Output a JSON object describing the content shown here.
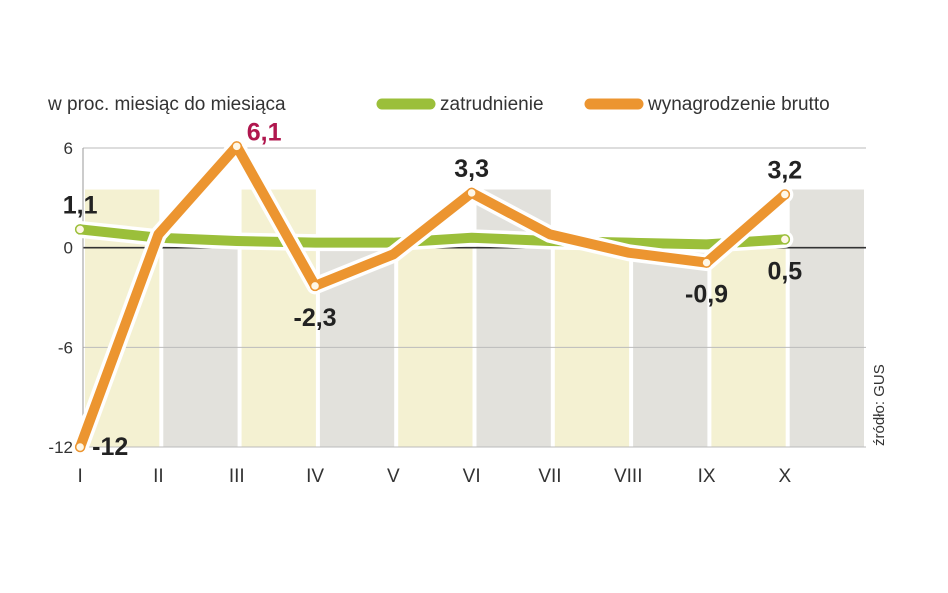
{
  "chart_data": {
    "type": "line",
    "ylabel": "w proc. miesiąc do miesiąca",
    "categories": [
      "I",
      "II",
      "III",
      "IV",
      "V",
      "VI",
      "VII",
      "VIII",
      "IX",
      "X"
    ],
    "ylim": [
      -12,
      6
    ],
    "yticks": [
      "6",
      "0",
      "-6",
      "-12"
    ],
    "ytick_values": [
      6,
      0,
      -6,
      -12
    ],
    "legend_position": "top-right",
    "source": "źródło: GUS",
    "series": [
      {
        "name": "zatrudnienie",
        "color": "#9bbf3a",
        "values": [
          1.1,
          0.6,
          0.4,
          0.3,
          0.3,
          0.6,
          0.4,
          0.3,
          0.2,
          0.5
        ]
      },
      {
        "name": "wynagrodzenie brutto",
        "color": "#ec9530",
        "values": [
          -12,
          0.8,
          6.1,
          -2.3,
          -0.4,
          3.3,
          0.8,
          -0.3,
          -0.9,
          3.2
        ]
      }
    ],
    "annotations": [
      {
        "text": "1,1",
        "series": 0,
        "index": 0,
        "pos": "above",
        "color": "#222222"
      },
      {
        "text": "0,5",
        "series": 0,
        "index": 9,
        "pos": "below",
        "color": "#222222"
      },
      {
        "text": "-12",
        "series": 1,
        "index": 0,
        "pos": "right",
        "color": "#222222"
      },
      {
        "text": "6,1",
        "series": 1,
        "index": 2,
        "pos": "right-top",
        "color": "#b0174e"
      },
      {
        "text": "-2,3",
        "series": 1,
        "index": 3,
        "pos": "below",
        "color": "#222222"
      },
      {
        "text": "3,3",
        "series": 1,
        "index": 5,
        "pos": "above",
        "color": "#222222"
      },
      {
        "text": "-0,9",
        "series": 1,
        "index": 8,
        "pos": "below",
        "color": "#222222"
      },
      {
        "text": "3,2",
        "series": 1,
        "index": 9,
        "pos": "above",
        "color": "#222222"
      }
    ],
    "background_columns": {
      "light_color": "#f4f1d2",
      "dark_color": "#e2e1dc",
      "pattern": [
        "light",
        "dark",
        "light",
        "dark",
        "light",
        "dark",
        "light",
        "dark",
        "light",
        "dark"
      ]
    }
  }
}
